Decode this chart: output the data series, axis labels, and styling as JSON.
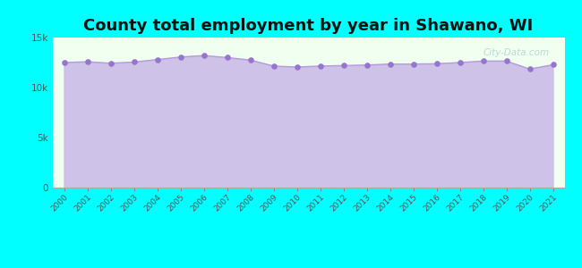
{
  "title": "County total employment by year in Shawano, WI",
  "years": [
    2000,
    2001,
    2002,
    2003,
    2004,
    2005,
    2006,
    2007,
    2008,
    2009,
    2010,
    2011,
    2012,
    2013,
    2014,
    2015,
    2016,
    2017,
    2018,
    2019,
    2020,
    2021
  ],
  "values": [
    12500,
    12580,
    12430,
    12550,
    12800,
    13050,
    13200,
    13000,
    12750,
    12150,
    12050,
    12150,
    12200,
    12250,
    12350,
    12350,
    12380,
    12500,
    12650,
    12650,
    11850,
    12280
  ],
  "ylim": [
    0,
    15000
  ],
  "yticks": [
    0,
    5000,
    10000,
    15000
  ],
  "ytick_labels": [
    "0",
    "5k",
    "10k",
    "15k"
  ],
  "line_color": "#b39ddb",
  "fill_color": "#c9b8e8",
  "fill_alpha": 0.85,
  "marker_color": "#9575cd",
  "bg_color": "#00ffff",
  "plot_bg_color": "#f0fff0",
  "title_fontsize": 13,
  "title_color": "#111111",
  "watermark": "City-Data.com",
  "tick_label_color": "#555555"
}
